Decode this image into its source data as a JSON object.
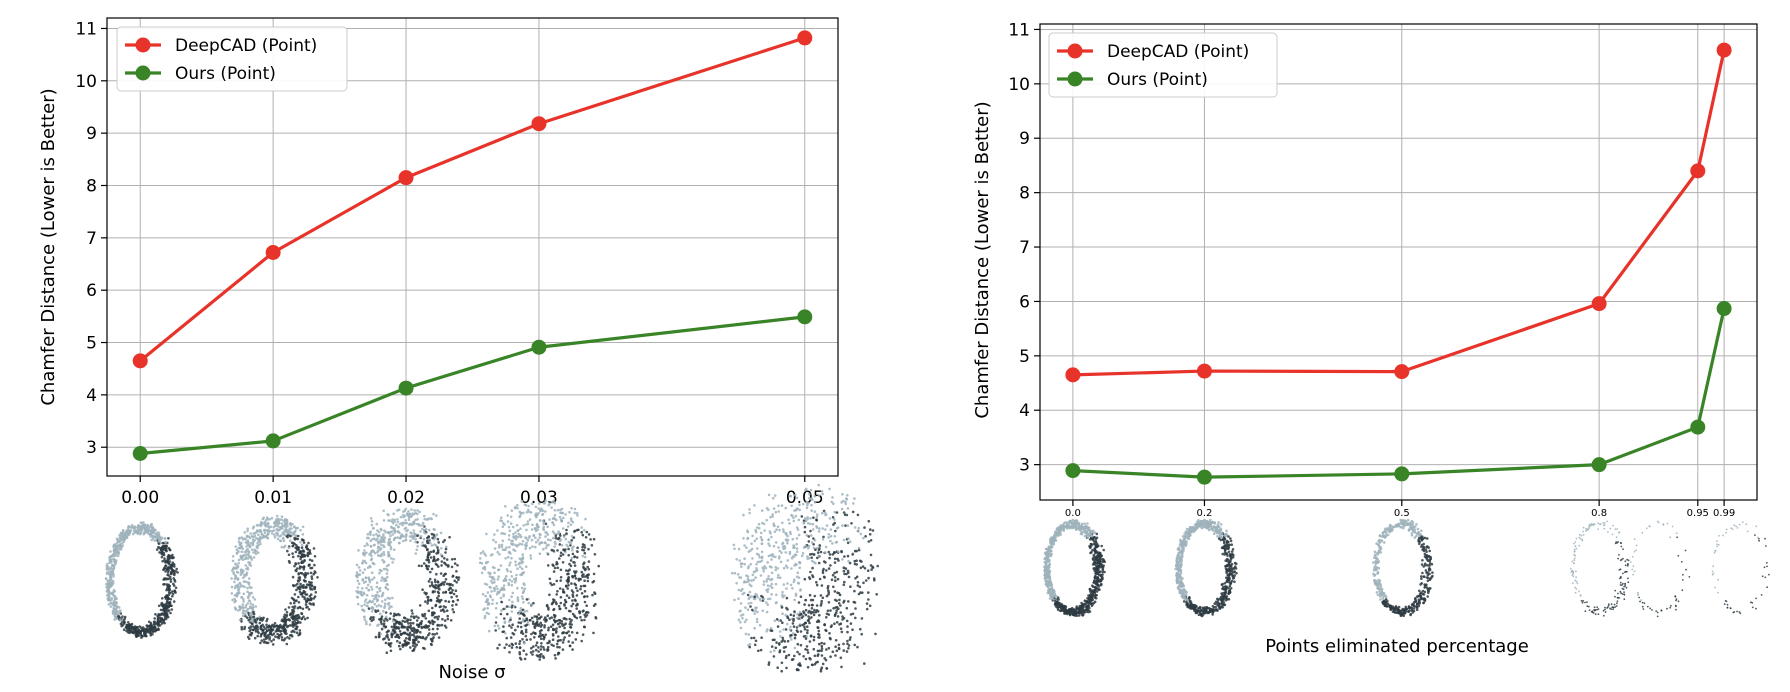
{
  "chart_data": [
    {
      "type": "line",
      "title": "",
      "xlabel": "Noise σ",
      "ylabel": "Chamfer Distance (Lower is Better)",
      "x": [
        0.0,
        0.01,
        0.02,
        0.03,
        0.05
      ],
      "x_tick_labels": [
        "0.00",
        "0.01",
        "0.02",
        "0.03",
        "0.05"
      ],
      "xlim": [
        -0.0025,
        0.0525
      ],
      "ylim": [
        2.45,
        11.2
      ],
      "y_ticks": [
        3,
        4,
        5,
        6,
        7,
        8,
        9,
        10,
        11
      ],
      "grid": true,
      "legend_position": "top-left",
      "series": [
        {
          "name": "DeepCAD (Point)",
          "color": "#e8332a",
          "values": [
            4.65,
            6.72,
            8.15,
            9.18,
            10.82
          ]
        },
        {
          "name": "Ours (Point)",
          "color": "#3a8428",
          "values": [
            2.88,
            3.12,
            4.13,
            4.91,
            5.49
          ]
        }
      ],
      "thumbnails": "noisy ring point clouds"
    },
    {
      "type": "line",
      "title": "",
      "xlabel": "Points eliminated percentage",
      "ylabel": "Chamfer Distance (Lower is Better)",
      "x": [
        0.0,
        0.2,
        0.5,
        0.8,
        0.95,
        0.99
      ],
      "x_tick_labels": [
        "0.0",
        "0.2",
        "0.5",
        "0.8",
        "0.95",
        "0.99"
      ],
      "xlim": [
        -0.05,
        1.04
      ],
      "ylim": [
        2.35,
        11.1
      ],
      "y_ticks": [
        3,
        4,
        5,
        6,
        7,
        8,
        9,
        10,
        11
      ],
      "grid": true,
      "legend_position": "top-left",
      "series": [
        {
          "name": "DeepCAD (Point)",
          "color": "#e8332a",
          "values": [
            4.65,
            4.72,
            4.71,
            5.96,
            8.4,
            10.62
          ]
        },
        {
          "name": "Ours (Point)",
          "color": "#3a8428",
          "values": [
            2.89,
            2.77,
            2.83,
            3.0,
            3.69,
            5.87
          ]
        }
      ],
      "thumbnails": "sparsified ring point clouds"
    }
  ]
}
